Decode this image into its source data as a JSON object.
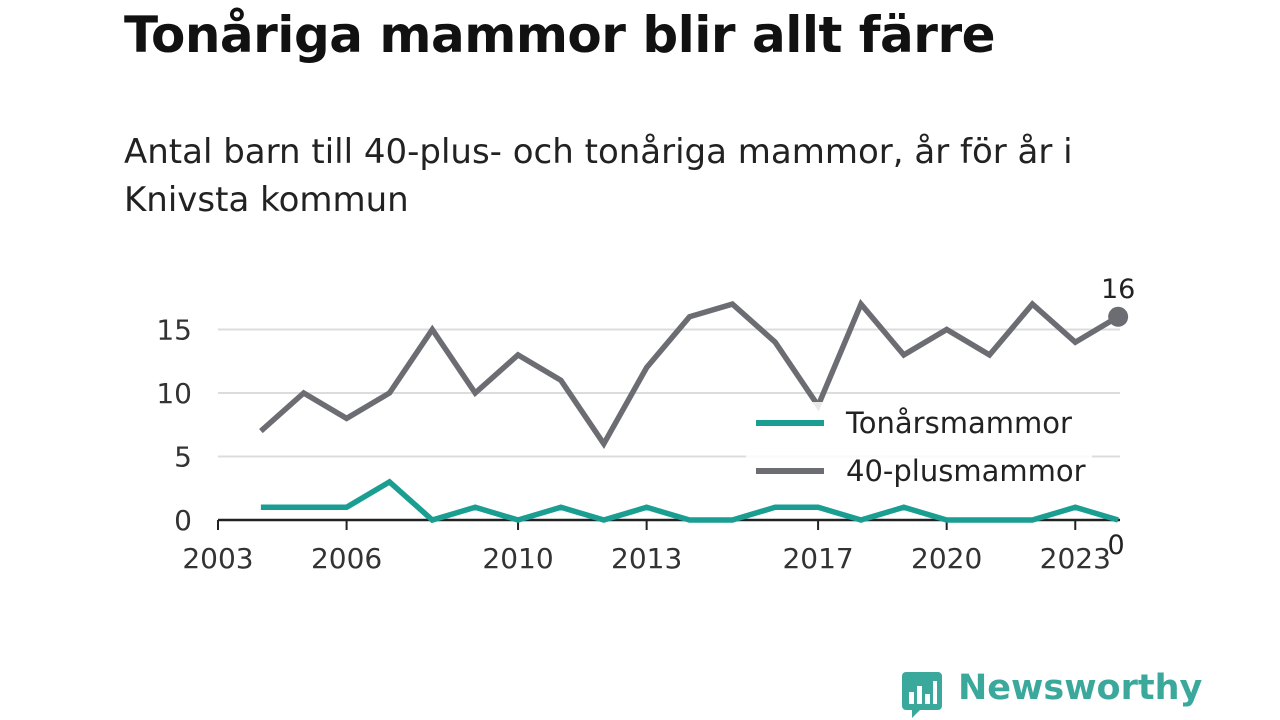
{
  "header": {
    "title": "Tonåriga mammor blir allt färre",
    "subtitle": "Antal barn till 40-plus- och tonåriga mammor, år för år i Knivsta kommun"
  },
  "chart_data": {
    "type": "line",
    "x": [
      2004,
      2005,
      2006,
      2007,
      2008,
      2009,
      2010,
      2011,
      2012,
      2013,
      2014,
      2015,
      2016,
      2017,
      2018,
      2019,
      2020,
      2021,
      2022,
      2023,
      2024
    ],
    "series": [
      {
        "name": "Tonårsmammor",
        "color": "#1a9e92",
        "values": [
          1,
          1,
          1,
          3,
          0,
          1,
          0,
          1,
          0,
          1,
          0,
          0,
          1,
          1,
          0,
          1,
          0,
          0,
          0,
          1,
          0
        ],
        "end_label": "0"
      },
      {
        "name": "40-plusmammor",
        "color": "#6c6c73",
        "values": [
          7,
          10,
          8,
          10,
          15,
          10,
          13,
          11,
          6,
          12,
          16,
          17,
          14,
          9,
          17,
          13,
          15,
          13,
          17,
          14,
          16
        ],
        "end_label": "16"
      }
    ],
    "x_ticks": [
      2003,
      2006,
      2010,
      2013,
      2017,
      2020,
      2023
    ],
    "y_ticks": [
      0,
      5,
      10,
      15
    ],
    "xlim": [
      2003,
      2025
    ],
    "ylim": [
      0,
      18
    ],
    "grid": true,
    "legend_position": "right-middle"
  },
  "brand": {
    "name": "Newsworthy",
    "icon": "newsworthy-chart-icon",
    "color": "#3ba89c"
  }
}
